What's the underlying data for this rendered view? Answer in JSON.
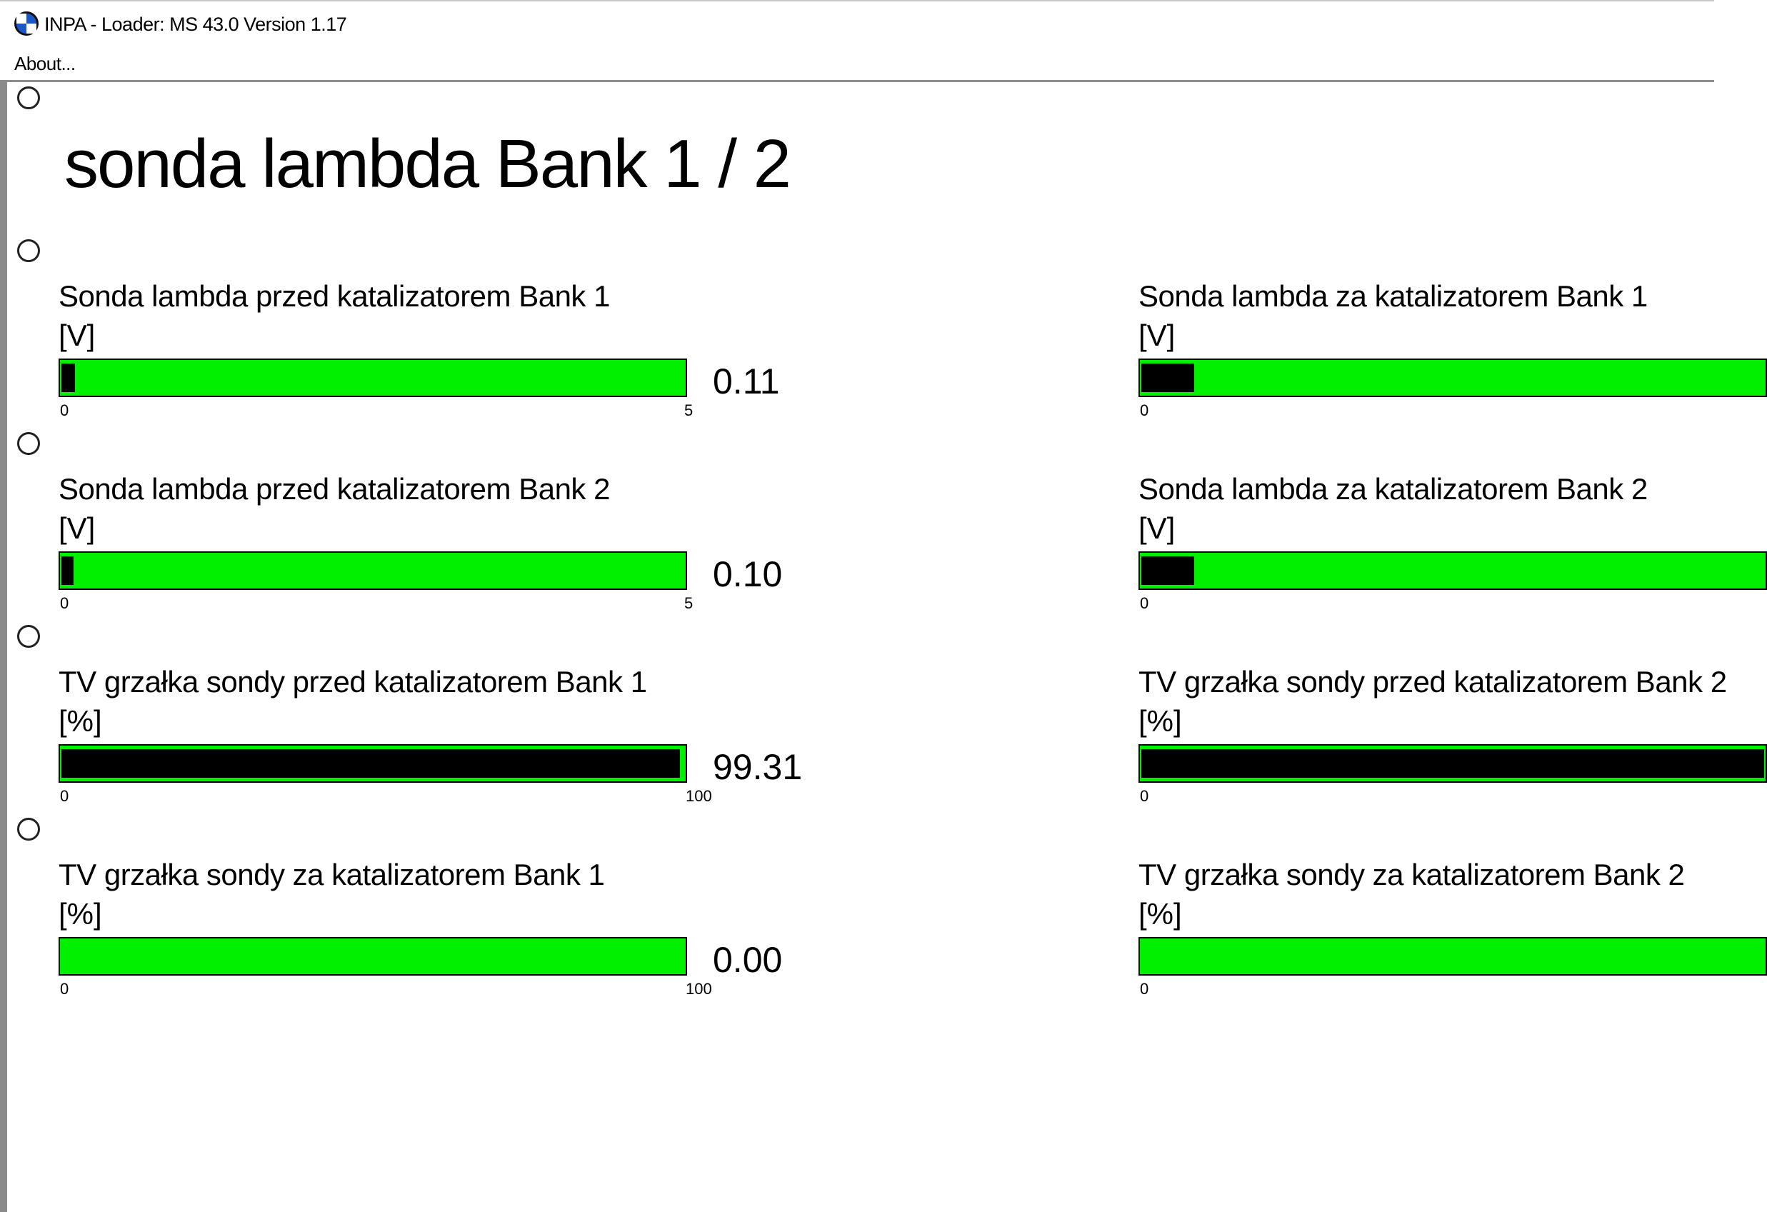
{
  "window": {
    "title": "INPA - Loader:  MS 43.0 Version 1.17"
  },
  "menu": {
    "items": [
      "About..."
    ]
  },
  "page": {
    "title": "sonda lambda Bank 1 / 2"
  },
  "gauges_left": [
    {
      "label": "Sonda lambda przed katalizatorem Bank 1",
      "unit": "[V]",
      "value": "0.11",
      "fraction": 0.022,
      "min": "0",
      "max": "5"
    },
    {
      "label": "Sonda lambda przed katalizatorem Bank 2",
      "unit": "[V]",
      "value": "0.10",
      "fraction": 0.02,
      "min": "0",
      "max": "5"
    },
    {
      "label": "TV grzałka sondy przed katalizatorem Bank 1",
      "unit": "[%]",
      "value": "99.31",
      "fraction": 0.9931,
      "min": "0",
      "max": "100"
    },
    {
      "label": "TV grzałka sondy za katalizatorem Bank 1",
      "unit": "[%]",
      "value": "0.00",
      "fraction": 0.0,
      "min": "0",
      "max": "100"
    }
  ],
  "gauges_right": [
    {
      "label": "Sonda lambda za katalizatorem Bank 1",
      "unit": "[V]",
      "fraction": 0.085,
      "min": "0"
    },
    {
      "label": "Sonda lambda za katalizatorem Bank 2",
      "unit": "[V]",
      "fraction": 0.085,
      "min": "0"
    },
    {
      "label": "TV grzałka sondy przed katalizatorem Bank 2",
      "unit": "[%]",
      "fraction": 1.0,
      "min": "0"
    },
    {
      "label": "TV grzałka sondy za katalizatorem Bank 2",
      "unit": "[%]",
      "fraction": 0.0,
      "min": "0"
    }
  ],
  "colors": {
    "bar_fill": "#00f000",
    "bar_level": "#000000"
  },
  "icons": {
    "app": "bmw-logo-icon"
  }
}
